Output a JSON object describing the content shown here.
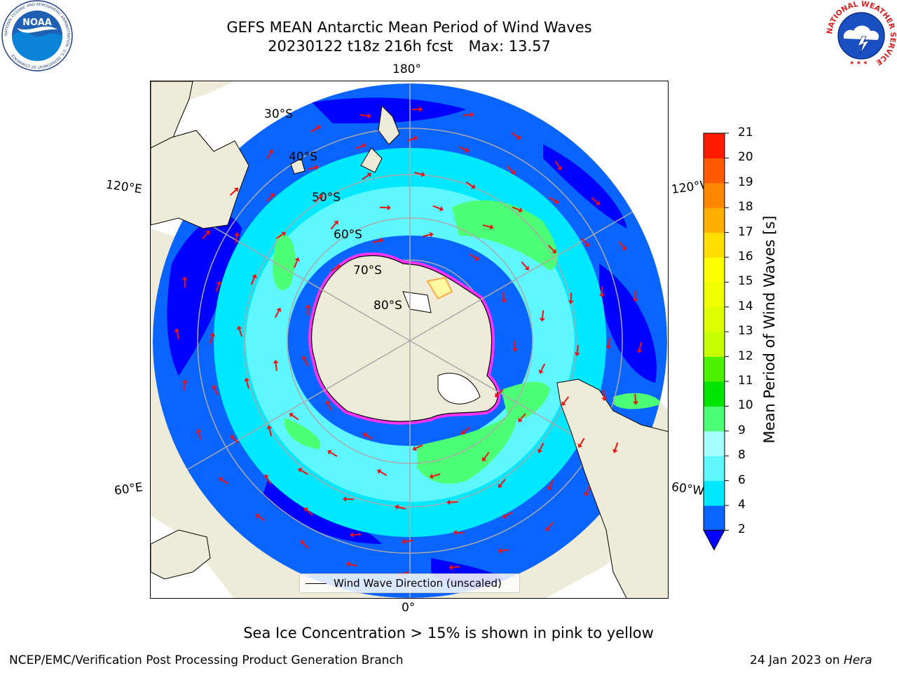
{
  "header": {
    "title_line1": "GEFS MEAN Antarctic Mean Period of Wind Waves",
    "title_line2": "20230122 t18z 216h fcst",
    "max_text": "Max: 13.57"
  },
  "map": {
    "projection": "south-polar-stereographic",
    "longitude_labels": {
      "top": "180°",
      "bottom": "0°",
      "upper_left": "120°E",
      "lower_left": "60°E",
      "upper_right": "120°W",
      "lower_right": "60°W"
    },
    "latitude_labels": [
      "30°S",
      "40°S",
      "50°S",
      "60°S",
      "70°S",
      "80°S"
    ],
    "vector_legend": "Wind Wave Direction (unscaled)",
    "land_color": "#eeecd8",
    "ocean_field_colors": [
      "#0000ff",
      "#0a64ff",
      "#00e0ff",
      "#5ff7ff",
      "#4cff74"
    ],
    "arrow_color": "#ee1111",
    "sea_ice_colors": [
      "#ff33ff",
      "#ffaa44",
      "#ffff99"
    ]
  },
  "colorbar": {
    "label": "Mean Period of Wind Waves [s]",
    "ticks": [
      "2",
      "4",
      "6",
      "8",
      "9",
      "10",
      "11",
      "12",
      "13",
      "14",
      "15",
      "16",
      "17",
      "18",
      "19",
      "20",
      "21"
    ],
    "colors": [
      "#0a64ff",
      "#00e8ff",
      "#5ff7ff",
      "#a5ffff",
      "#4cff74",
      "#00e600",
      "#4cf000",
      "#c8ff00",
      "#ddff00",
      "#f0ff00",
      "#ffff00",
      "#ffdd00",
      "#ffb000",
      "#ff8800",
      "#ff5a00",
      "#ff1a00"
    ],
    "under_color": "#0000ff"
  },
  "chart_data": {
    "type": "heatmap",
    "title": "GEFS MEAN Antarctic Mean Period of Wind Waves",
    "subtitle": "20230122 t18z 216h fcst   Max: 13.57",
    "variable_label": "Mean Period of Wind Waves [s]",
    "color_levels": [
      2,
      4,
      6,
      8,
      9,
      10,
      11,
      12,
      13,
      14,
      15,
      16,
      17,
      18,
      19,
      20,
      21
    ],
    "max_value": 13.57,
    "overlay_vectors": "Wind Wave Direction (unscaled)",
    "sea_ice_note": "Sea Ice Concentration > 15% is shown in pink to yellow"
  },
  "footer": {
    "note": "Sea Ice Concentration > 15% is shown in pink to yellow",
    "credit_left": "NCEP/EMC/Verification Post Processing Product Generation Branch",
    "credit_date": "24 Jan 2023 on",
    "credit_machine": "Hera"
  },
  "logos": {
    "noaa_text": "NOAA",
    "noaa_ring_text": "NATIONAL OCEANIC AND ATMOSPHERIC ADMINISTRATION · U.S. DEPARTMENT OF COMMERCE",
    "nws_ring_text": "NATIONAL WEATHER SERVICE"
  }
}
